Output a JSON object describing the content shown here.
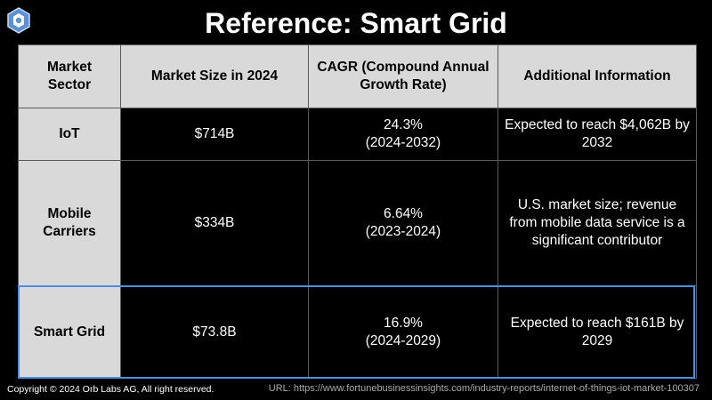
{
  "title": "Reference: Smart Grid",
  "header": {
    "sector": "Market Sector",
    "size": "Market Size in 2024",
    "cagr": "CAGR (Compound Annual Growth Rate)",
    "info": "Additional Information"
  },
  "rows": [
    {
      "sector": "IoT",
      "size": "$714B",
      "cagr_rate": "24.3%",
      "cagr_period": "(2024-2032)",
      "info": "Expected to reach $4,062B by 2032"
    },
    {
      "sector": "Mobile Carriers",
      "size": "$334B",
      "cagr_rate": "6.64%",
      "cagr_period": "(2023-2024)",
      "info": "U.S. market size; revenue from mobile data service is a significant contributor"
    },
    {
      "sector": "Smart Grid",
      "size": "$73.8B",
      "cagr_rate": "16.9%",
      "cagr_period": "(2024-2029)",
      "info": "Expected to reach $161B by 2029"
    }
  ],
  "footer": {
    "copyright": "Copyright © 2024 Orb Labs AG, All right reserved.",
    "url": "URL: https://www.fortunebusinessinsights.com/industry-reports/internet-of-things-iot-market-100307"
  },
  "colors": {
    "highlight": "#4a8fe0",
    "header_bg": "#d9d9d9",
    "cell_bg": "#000000",
    "logo": "#5b8fd6"
  },
  "icons": {
    "logo": "hexagon-logo-icon"
  }
}
